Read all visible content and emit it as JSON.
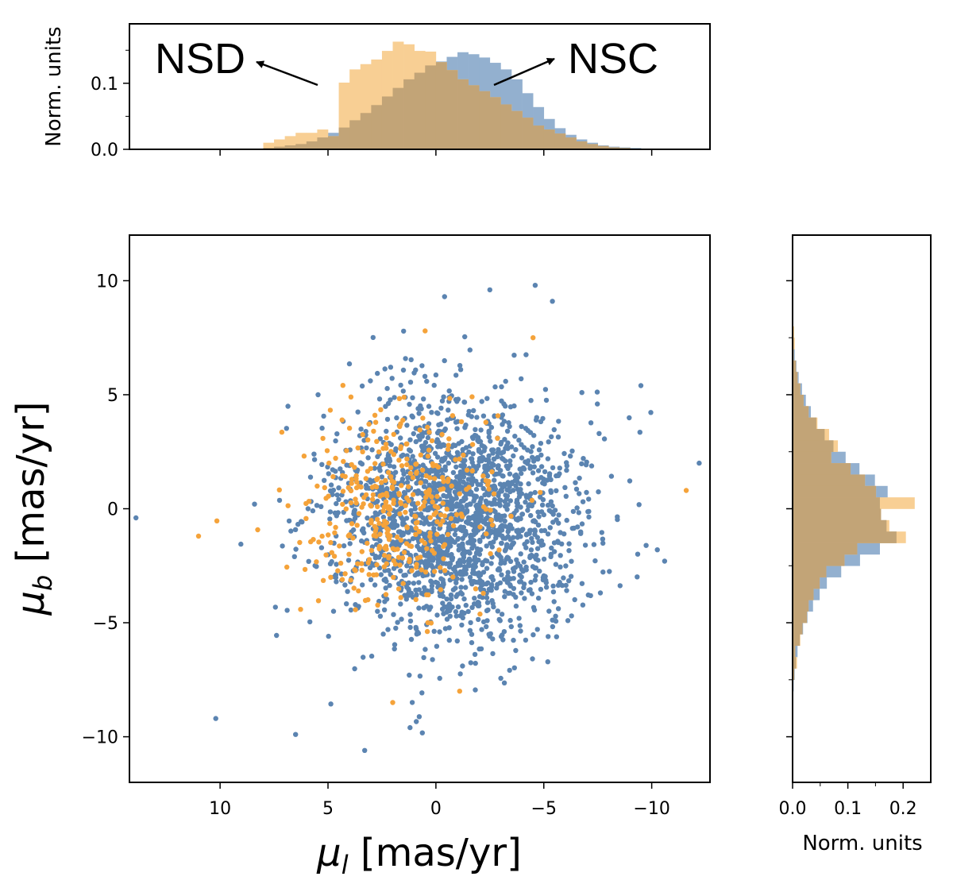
{
  "chart_data": {
    "type": "scatter",
    "colors": {
      "NSC": "#5b84b1",
      "NSD": "#f5a33a",
      "NSC_hist": "#93b0cf",
      "NSD_hist": "#f8cf94",
      "overlap": "#c2a477"
    },
    "annotations": {
      "left": "NSD",
      "right": "NSC"
    },
    "main": {
      "xlabel_sym": "μ",
      "xlabel_sub": "l",
      "xlabel_unit": " [mas/yr]",
      "ylabel_sym": "μ",
      "ylabel_sub": "b",
      "ylabel_unit": " [mas/yr]",
      "xlim": [
        14.2,
        -12.7
      ],
      "ylim": [
        -12,
        12
      ],
      "xticks": [
        10,
        5,
        0,
        -5,
        -10
      ],
      "xtick_labels": [
        "10",
        "5",
        "0",
        "−5",
        "−10"
      ],
      "yticks": [
        10,
        5,
        0,
        -5,
        -10
      ],
      "ytick_labels": [
        "10",
        "5",
        "0",
        "−5",
        "−10"
      ],
      "series": [
        {
          "name": "NSC",
          "n": 2000,
          "mean": [
            -1.0,
            -0.4
          ],
          "std": [
            2.9,
            2.7
          ],
          "outliers": [
            [
              13.9,
              -0.4
            ],
            [
              -12.2,
              2.0
            ],
            [
              10.2,
              -9.2
            ],
            [
              3.3,
              -10.6
            ],
            [
              -4.6,
              9.8
            ],
            [
              -5.4,
              9.1
            ],
            [
              -0.4,
              9.3
            ],
            [
              -2.5,
              9.6
            ],
            [
              6.5,
              -9.9
            ],
            [
              1.2,
              -9.6
            ],
            [
              -9.5,
              5.4
            ],
            [
              -10.6,
              -2.3
            ]
          ]
        },
        {
          "name": "NSD",
          "n": 380,
          "mean": [
            1.8,
            0.1
          ],
          "std": [
            2.2,
            2.2
          ],
          "outliers": [
            [
              11.0,
              -1.2
            ],
            [
              -11.6,
              0.8
            ],
            [
              2.0,
              -8.5
            ],
            [
              -1.1,
              -8.0
            ],
            [
              -4.5,
              7.5
            ],
            [
              0.5,
              7.8
            ]
          ]
        }
      ]
    },
    "top_hist": {
      "ylabel": "Norm. units",
      "ylim": [
        0,
        0.19
      ],
      "yticks": [
        0.0,
        0.1
      ],
      "ytick_labels": [
        "0.0",
        "0.1"
      ],
      "bin_edges": [
        8,
        7.5,
        7,
        6.5,
        6,
        5.5,
        5,
        4.5,
        4,
        3.5,
        3,
        2.5,
        2,
        1.5,
        1,
        0.5,
        0,
        -0.5,
        -1,
        -1.5,
        -2,
        -2.5,
        -3,
        -3.5,
        -4,
        -4.5,
        -5,
        -5.5,
        -6,
        -6.5,
        -7,
        -7.5,
        -8,
        -8.5,
        -9,
        -9.5,
        -10,
        -10.5,
        -11,
        -11.5,
        -12
      ],
      "NSC": [
        0.002,
        0.004,
        0.006,
        0.008,
        0.012,
        0.018,
        0.025,
        0.033,
        0.044,
        0.055,
        0.067,
        0.08,
        0.093,
        0.106,
        0.116,
        0.127,
        0.133,
        0.14,
        0.147,
        0.144,
        0.139,
        0.131,
        0.121,
        0.106,
        0.085,
        0.064,
        0.046,
        0.032,
        0.022,
        0.015,
        0.01,
        0.006,
        0.004,
        0.003,
        0.002,
        0.001,
        0.001,
        0.001,
        0.0,
        0.0
      ],
      "NSD": [
        0.01,
        0.015,
        0.02,
        0.025,
        0.025,
        0.03,
        0.02,
        0.101,
        0.121,
        0.129,
        0.136,
        0.149,
        0.163,
        0.159,
        0.149,
        0.148,
        0.132,
        0.12,
        0.106,
        0.097,
        0.088,
        0.079,
        0.068,
        0.058,
        0.048,
        0.036,
        0.03,
        0.024,
        0.018,
        0.012,
        0.008,
        0.005,
        0.003,
        0.002,
        0.001,
        0.001,
        0.0,
        0.0,
        0.0,
        0.0
      ]
    },
    "right_hist": {
      "xlabel": "Norm. units",
      "xlim": [
        0,
        0.25
      ],
      "xticks": [
        0.0,
        0.1,
        0.2
      ],
      "xtick_labels": [
        "0.0",
        "0.1",
        "0.2"
      ],
      "bin_edges": [
        8,
        7.5,
        7,
        6.5,
        6,
        5.5,
        5,
        4.5,
        4,
        3.5,
        3,
        2.5,
        2,
        1.5,
        1,
        0.5,
        0,
        -0.5,
        -1,
        -1.5,
        -2,
        -2.5,
        -3,
        -3.5,
        -4,
        -4.5,
        -5,
        -5.5,
        -6,
        -6.5,
        -7,
        -7.5,
        -8
      ],
      "NSC": [
        0.001,
        0.002,
        0.004,
        0.007,
        0.011,
        0.017,
        0.024,
        0.033,
        0.043,
        0.058,
        0.074,
        0.096,
        0.121,
        0.149,
        0.172,
        0.158,
        0.16,
        0.17,
        0.188,
        0.158,
        0.122,
        0.088,
        0.062,
        0.049,
        0.037,
        0.027,
        0.019,
        0.013,
        0.009,
        0.006,
        0.004,
        0.002
      ],
      "NSD": [
        0.003,
        0.004,
        0.002,
        0.006,
        0.009,
        0.014,
        0.02,
        0.029,
        0.045,
        0.066,
        0.082,
        0.07,
        0.105,
        0.131,
        0.151,
        0.221,
        0.16,
        0.175,
        0.205,
        0.117,
        0.094,
        0.061,
        0.049,
        0.038,
        0.029,
        0.026,
        0.018,
        0.014,
        0.005,
        0.008,
        0.003,
        0.001
      ]
    }
  }
}
